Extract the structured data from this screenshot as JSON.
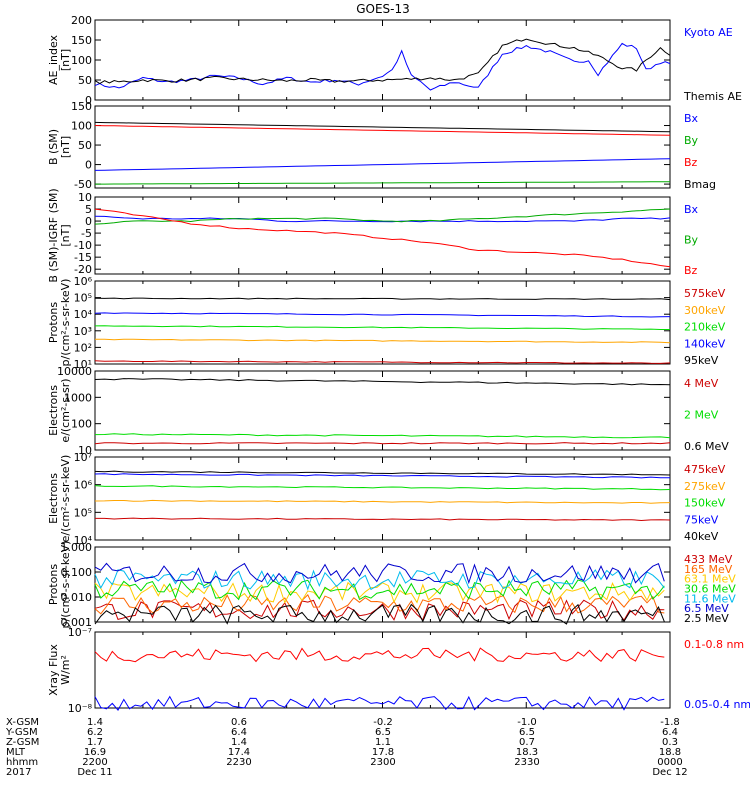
{
  "title": "GOES-13",
  "chart_data": [
    {
      "type": "line",
      "ylabel": [
        "AE_index",
        "[nT]"
      ],
      "yticks": [
        "200",
        "150",
        "100",
        "50",
        "0"
      ],
      "ylim": [
        0,
        200
      ],
      "x_range_minutes": [
        0,
        120
      ],
      "series": [
        {
          "name": "Kyoto AE",
          "color": "#0000ff",
          "x": [
            0,
            5,
            10,
            15,
            20,
            25,
            30,
            35,
            40,
            45,
            50,
            55,
            60,
            62,
            64,
            66,
            68,
            70,
            75,
            80,
            85,
            90,
            95,
            100,
            103,
            105,
            110,
            113,
            115,
            118,
            120
          ],
          "values": [
            40,
            30,
            55,
            45,
            50,
            60,
            55,
            40,
            55,
            45,
            50,
            40,
            60,
            75,
            120,
            60,
            45,
            25,
            45,
            30,
            115,
            135,
            120,
            95,
            100,
            65,
            140,
            130,
            75,
            95,
            90
          ]
        },
        {
          "name": "Themis AE",
          "color": "#000000",
          "x": [
            0,
            5,
            10,
            15,
            20,
            25,
            30,
            35,
            40,
            45,
            50,
            55,
            60,
            65,
            70,
            75,
            80,
            85,
            90,
            95,
            100,
            105,
            110,
            113,
            115,
            118,
            120
          ],
          "values": [
            45,
            45,
            50,
            48,
            50,
            55,
            52,
            50,
            48,
            50,
            47,
            48,
            50,
            52,
            55,
            50,
            65,
            135,
            155,
            140,
            130,
            110,
            80,
            75,
            100,
            130,
            115
          ]
        }
      ],
      "legend": "right"
    },
    {
      "type": "line",
      "ylabel": [
        "B (SM)",
        "[nT]"
      ],
      "yticks": [
        "150",
        "100",
        "50",
        "0",
        "-50"
      ],
      "ylim": [
        -60,
        150
      ],
      "x_range_minutes": [
        0,
        120
      ],
      "series": [
        {
          "name": "Bx",
          "color": "#0000ff",
          "x": [
            0,
            120
          ],
          "values": [
            -15,
            15
          ]
        },
        {
          "name": "By",
          "color": "#00aa00",
          "x": [
            0,
            120
          ],
          "values": [
            -50,
            -44
          ]
        },
        {
          "name": "Bz",
          "color": "#ff0000",
          "x": [
            0,
            120
          ],
          "values": [
            100,
            75
          ]
        },
        {
          "name": "Bmag",
          "color": "#000000",
          "x": [
            0,
            120
          ],
          "values": [
            108,
            84
          ]
        }
      ],
      "legend": "right"
    },
    {
      "type": "line",
      "ylabel": [
        "B (SM)-IGRF (SM)",
        "[nT]"
      ],
      "yticks": [
        "10",
        "5",
        "0",
        "-5",
        "-10",
        "-15",
        "-20"
      ],
      "ylim": [
        -22,
        10
      ],
      "x_range_minutes": [
        0,
        120
      ],
      "series": [
        {
          "name": "Bx",
          "color": "#0000ff",
          "x": [
            0,
            10,
            20,
            30,
            40,
            50,
            60,
            70,
            80,
            90,
            100,
            110,
            120
          ],
          "values": [
            2,
            1,
            1,
            1,
            0,
            0,
            0,
            0,
            0,
            0,
            0,
            1,
            1
          ]
        },
        {
          "name": "By",
          "color": "#00aa00",
          "x": [
            0,
            10,
            20,
            30,
            40,
            50,
            60,
            70,
            80,
            90,
            100,
            110,
            120
          ],
          "values": [
            -1,
            0,
            0,
            1,
            1,
            1,
            0,
            0,
            1,
            2,
            3,
            4,
            5
          ]
        },
        {
          "name": "Bz",
          "color": "#ff0000",
          "x": [
            0,
            10,
            20,
            30,
            40,
            50,
            60,
            70,
            80,
            90,
            100,
            110,
            120
          ],
          "values": [
            5,
            2,
            -1,
            -3,
            -4,
            -5,
            -7,
            -9,
            -12,
            -13,
            -14,
            -16,
            -19
          ]
        }
      ],
      "legend": "right"
    },
    {
      "type": "line",
      "ylabel": [
        "Protons",
        "p/(cm²-s-sr-keV)"
      ],
      "yticks": [
        "10⁶",
        "10⁵",
        "10⁴",
        "10³",
        "10²",
        "10¹"
      ],
      "yscale": "log",
      "ylim": [
        10,
        1000000
      ],
      "x_range_minutes": [
        0,
        120
      ],
      "series": [
        {
          "name": "575keV",
          "color": "#cc0000",
          "x": [
            0,
            120
          ],
          "values": [
            15,
            11
          ]
        },
        {
          "name": "300keV",
          "color": "#ffa500",
          "x": [
            0,
            120
          ],
          "values": [
            300,
            200
          ]
        },
        {
          "name": "210keV",
          "color": "#00dd00",
          "x": [
            0,
            120
          ],
          "values": [
            2000,
            1200
          ]
        },
        {
          "name": "140keV",
          "color": "#0000ff",
          "x": [
            0,
            120
          ],
          "values": [
            12000,
            7000
          ]
        },
        {
          "name": "95keV",
          "color": "#000000",
          "x": [
            0,
            120
          ],
          "values": [
            90000,
            80000
          ]
        }
      ],
      "legend": "right"
    },
    {
      "type": "line",
      "ylabel": [
        "Electrons",
        "e/(cm²-s-sr)"
      ],
      "yticks": [
        "10000",
        "1000",
        "100",
        "10"
      ],
      "yscale": "log",
      "ylim": [
        10,
        10000
      ],
      "x_range_minutes": [
        0,
        120
      ],
      "series": [
        {
          "name": "4 MeV",
          "color": "#cc0000",
          "x": [
            0,
            120
          ],
          "values": [
            18,
            18
          ]
        },
        {
          "name": "2 MeV",
          "color": "#00dd00",
          "x": [
            0,
            120
          ],
          "values": [
            40,
            30
          ]
        },
        {
          "name": "0.6 MeV",
          "color": "#000000",
          "x": [
            0,
            120
          ],
          "values": [
            5000,
            3000
          ]
        }
      ],
      "legend": "right"
    },
    {
      "type": "line",
      "ylabel": [
        "Electrons",
        "e/(cm²-s-sr-keV)"
      ],
      "yticks": [
        "10⁷",
        "10⁶",
        "10⁵",
        "10⁴"
      ],
      "yscale": "log",
      "ylim": [
        1000,
        10000000
      ],
      "x_range_minutes": [
        0,
        120
      ],
      "series": [
        {
          "name": "475keV",
          "color": "#cc0000",
          "x": [
            0,
            120
          ],
          "values": [
            11000,
            9000
          ]
        },
        {
          "name": "275keV",
          "color": "#ffa500",
          "x": [
            0,
            120
          ],
          "values": [
            80000,
            60000
          ]
        },
        {
          "name": "150keV",
          "color": "#00dd00",
          "x": [
            0,
            120
          ],
          "values": [
            400000,
            280000
          ]
        },
        {
          "name": "75keV",
          "color": "#0000ff",
          "x": [
            0,
            120
          ],
          "values": [
            1500000,
            1000000
          ]
        },
        {
          "name": "40keV",
          "color": "#000000",
          "x": [
            0,
            120
          ],
          "values": [
            2000000,
            1400000
          ]
        }
      ],
      "legend": "right"
    },
    {
      "type": "line",
      "ylabel": [
        "Protons",
        "p/(cm²-s-sr-keV)"
      ],
      "yticks": [
        "1.000",
        "0.100",
        "0.010",
        "0.001"
      ],
      "yscale": "log",
      "ylim": [
        0.001,
        1.0
      ],
      "x_range_minutes": [
        0,
        120
      ],
      "series": [
        {
          "name": "433 MeV",
          "color": "#cc0000",
          "level": 0.003
        },
        {
          "name": "165 MeV",
          "color": "#ff6600",
          "level": 0.005
        },
        {
          "name": "63.1 MeV",
          "color": "#ffcc00",
          "level": 0.015
        },
        {
          "name": "30.6 MeV",
          "color": "#00dd00",
          "level": 0.02
        },
        {
          "name": "11.6 MeV",
          "color": "#00bbee",
          "level": 0.05
        },
        {
          "name": "6.5 MeV",
          "color": "#0000cc",
          "level": 0.09
        },
        {
          "name": "2.5 MeV",
          "color": "#000000",
          "level": 0.002
        }
      ],
      "legend": "right"
    },
    {
      "type": "line",
      "ylabel": [
        "Xray Flux",
        "W/m²"
      ],
      "yticks": [
        "10⁻⁷",
        "10⁻⁸"
      ],
      "yscale": "log",
      "ylim": [
        1e-08,
        1e-07
      ],
      "x_range_minutes": [
        0,
        120
      ],
      "series": [
        {
          "name": "0.1-0.8 nm",
          "color": "#ff0000",
          "level": 5e-08
        },
        {
          "name": "0.05-0.4 nm",
          "color": "#0000ff",
          "level": 1.15e-08
        }
      ],
      "legend": "right"
    }
  ],
  "footer": {
    "row_labels": [
      "X-GSM",
      "Y-GSM",
      "Z-GSM",
      "MLT",
      "hhmm",
      "2017"
    ],
    "columns": [
      {
        "values": [
          "1.4",
          "6.2",
          "1.7",
          "16.9",
          "2200",
          "Dec 11"
        ]
      },
      {
        "values": [
          "0.6",
          "6.4",
          "1.4",
          "17.4",
          "2230",
          ""
        ]
      },
      {
        "values": [
          "-0.2",
          "6.5",
          "1.1",
          "17.8",
          "2300",
          ""
        ]
      },
      {
        "values": [
          "-1.0",
          "6.5",
          "0.7",
          "18.3",
          "2330",
          ""
        ]
      },
      {
        "values": [
          "-1.8",
          "6.4",
          "0.3",
          "18.8",
          "0000",
          "Dec 12"
        ]
      }
    ]
  }
}
